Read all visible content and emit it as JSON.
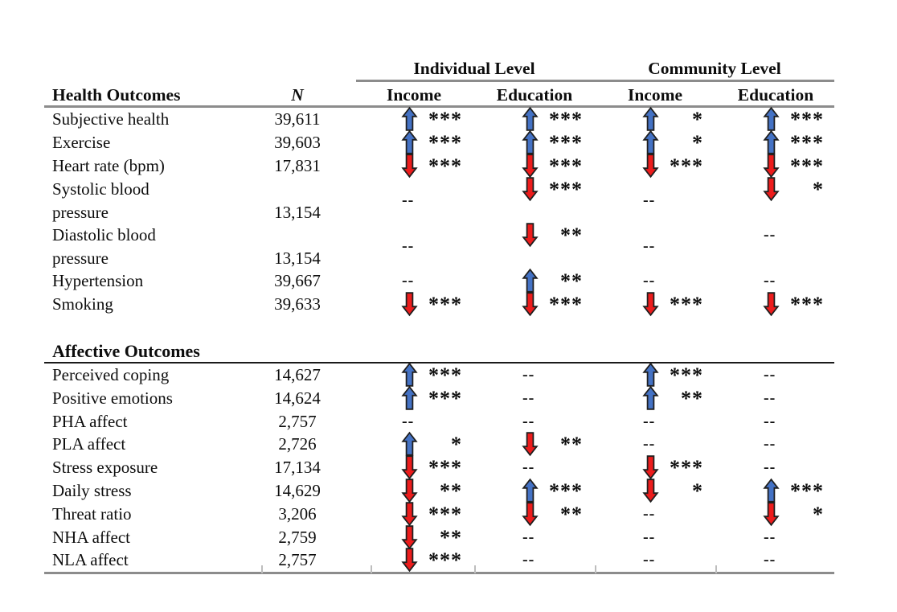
{
  "table": {
    "spanners": [
      "Individual Level",
      "Community Level"
    ],
    "columns": {
      "outcome_header": "Health Outcomes",
      "n_header": "N",
      "subheaders": [
        "Income",
        "Education",
        "Income",
        "Education"
      ]
    },
    "section_affective_title": "Affective Outcomes",
    "dash": "--",
    "health_rows": [
      {
        "label": "Subjective health",
        "n": "39,611",
        "cells": [
          {
            "arrow": "up",
            "stars": "***"
          },
          {
            "arrow": "up",
            "stars": "***"
          },
          {
            "arrow": "up",
            "stars": "*"
          },
          {
            "arrow": "up",
            "stars": "***"
          }
        ]
      },
      {
        "label": "Exercise",
        "n": "39,603",
        "cells": [
          {
            "arrow": "up",
            "stars": "***"
          },
          {
            "arrow": "up",
            "stars": "***"
          },
          {
            "arrow": "up",
            "stars": "*"
          },
          {
            "arrow": "up",
            "stars": "***"
          }
        ]
      },
      {
        "label": "Heart rate (bpm)",
        "n": "17,831",
        "cells": [
          {
            "arrow": "down",
            "stars": "***"
          },
          {
            "arrow": "down",
            "stars": "***"
          },
          {
            "arrow": "down",
            "stars": "***"
          },
          {
            "arrow": "down",
            "stars": "***"
          }
        ]
      },
      {
        "label": "Systolic blood\npressure",
        "n": "13,154",
        "tall": true,
        "cells": [
          {
            "dash": true,
            "valign": "mid"
          },
          {
            "arrow": "down",
            "stars": "***",
            "valign": "top"
          },
          {
            "dash": true,
            "valign": "mid"
          },
          {
            "arrow": "down",
            "stars": "*",
            "valign": "top"
          }
        ]
      },
      {
        "label": "Diastolic blood\npressure",
        "n": "13,154",
        "tall": true,
        "cells": [
          {
            "dash": true,
            "valign": "mid"
          },
          {
            "arrow": "down",
            "stars": "**",
            "valign": "top"
          },
          {
            "dash": true,
            "valign": "mid"
          },
          {
            "dash": true,
            "valign": "top"
          }
        ]
      },
      {
        "label": "Hypertension",
        "n": "39,667",
        "cells": [
          {
            "dash": true
          },
          {
            "arrow": "up",
            "stars": "**"
          },
          {
            "dash": true
          },
          {
            "dash": true
          }
        ]
      },
      {
        "label": "Smoking",
        "n": "39,633",
        "cells": [
          {
            "arrow": "down",
            "stars": "***"
          },
          {
            "arrow": "down",
            "stars": "***"
          },
          {
            "arrow": "down",
            "stars": "***"
          },
          {
            "arrow": "down",
            "stars": "***"
          }
        ]
      }
    ],
    "affective_rows": [
      {
        "label": "Perceived coping",
        "n": "14,627",
        "cells": [
          {
            "arrow": "up",
            "stars": "***"
          },
          {
            "dash": true
          },
          {
            "arrow": "up",
            "stars": "***"
          },
          {
            "dash": true
          }
        ]
      },
      {
        "label": "Positive emotions",
        "n": "14,624",
        "cells": [
          {
            "arrow": "up",
            "stars": "***"
          },
          {
            "dash": true
          },
          {
            "arrow": "up",
            "stars": "**"
          },
          {
            "dash": true
          }
        ]
      },
      {
        "label": "PHA affect",
        "n": "2,757",
        "cells": [
          {
            "dash": true
          },
          {
            "dash": true
          },
          {
            "dash": true
          },
          {
            "dash": true
          }
        ]
      },
      {
        "label": "PLA affect",
        "n": "2,726",
        "cells": [
          {
            "arrow": "up",
            "stars": "*"
          },
          {
            "arrow": "down",
            "stars": "**"
          },
          {
            "dash": true
          },
          {
            "dash": true
          }
        ]
      },
      {
        "label": "Stress exposure",
        "n": "17,134",
        "cells": [
          {
            "arrow": "down",
            "stars": "***"
          },
          {
            "dash": true
          },
          {
            "arrow": "down",
            "stars": "***"
          },
          {
            "dash": true
          }
        ]
      },
      {
        "label": "Daily stress",
        "n": "14,629",
        "cells": [
          {
            "arrow": "down",
            "stars": "**"
          },
          {
            "arrow": "up",
            "stars": "***"
          },
          {
            "arrow": "down",
            "stars": "*"
          },
          {
            "arrow": "up",
            "stars": "***"
          }
        ]
      },
      {
        "label": "Threat ratio",
        "n": "3,206",
        "cells": [
          {
            "arrow": "down",
            "stars": "***"
          },
          {
            "arrow": "down",
            "stars": "**"
          },
          {
            "dash": true
          },
          {
            "arrow": "down",
            "stars": "*"
          }
        ]
      },
      {
        "label": "NHA affect",
        "n": "2,759",
        "cells": [
          {
            "arrow": "down",
            "stars": "**"
          },
          {
            "dash": true
          },
          {
            "dash": true
          },
          {
            "dash": true
          }
        ]
      },
      {
        "label": "NLA affect",
        "n": "2,757",
        "cells": [
          {
            "arrow": "down",
            "stars": "***"
          },
          {
            "dash": true
          },
          {
            "dash": true
          },
          {
            "dash": true
          }
        ]
      }
    ]
  },
  "colors": {
    "arrow_up": "#4472C4",
    "arrow_down": "#ED1C1C",
    "arrow_outline": "#1f1f1f",
    "rule_gray": "#8c8c8c",
    "rule_dark": "#1a1a1a",
    "text": "#0d0d0d"
  }
}
